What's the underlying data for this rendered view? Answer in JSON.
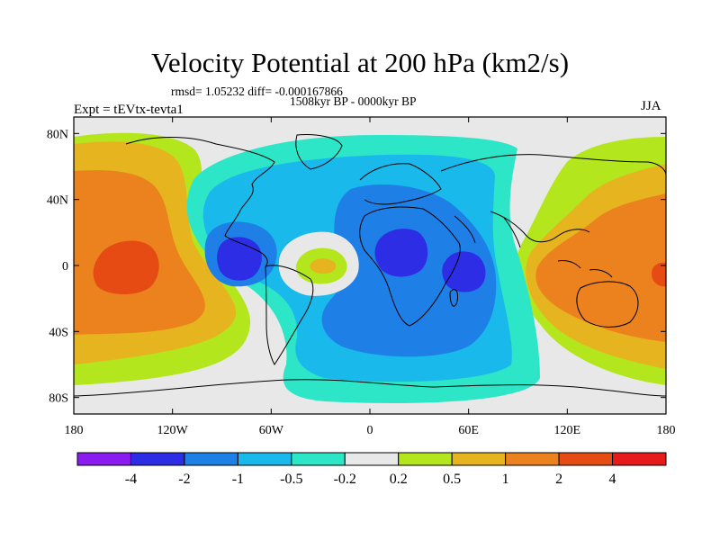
{
  "chart_data": {
    "type": "heatmap",
    "title": "Velocity Potential at 200 hPa (km2/s)",
    "stats_text": "rmsd= 1.05232  diff= -0.000167866",
    "period_text": "1508kyr BP - 0000kyr BP",
    "experiment_text": "Expt = tEVtx-tevta1",
    "season_text": "JJA",
    "x_ticks": [
      "180",
      "120W",
      "60W",
      "0",
      "60E",
      "120E",
      "180"
    ],
    "x_tick_values": [
      -180,
      -120,
      -60,
      0,
      60,
      120,
      180
    ],
    "y_ticks": [
      "80N",
      "40N",
      "0",
      "40S",
      "80S"
    ],
    "y_tick_values": [
      80,
      40,
      0,
      -40,
      -80
    ],
    "xlim": [
      -180,
      180
    ],
    "ylim": [
      -90,
      90
    ],
    "colorbar": {
      "levels": [
        "-4",
        "-2",
        "-1",
        "-0.5",
        "-0.2",
        "0.2",
        "0.5",
        "1",
        "2",
        "4"
      ],
      "colors": [
        "#8a1cf0",
        "#2d2de6",
        "#1e7fe6",
        "#19b9eb",
        "#2de6c8",
        "#e8e8e8",
        "#b4e61e",
        "#e6b41e",
        "#eb821e",
        "#e64b14",
        "#e61a1a"
      ]
    },
    "regions": [
      {
        "label": "Pacific positive anomaly",
        "level": "1 to 2",
        "center_lon": -150,
        "center_lat": 0
      },
      {
        "label": "Pacific positive core",
        "level": "2 to 4",
        "center_lon": -148,
        "center_lat": 0
      },
      {
        "label": "Central America negative core",
        "level": "-4 to -2",
        "center_lon": -80,
        "center_lat": 5
      },
      {
        "label": "South America positive anomaly",
        "level": "0.5 to 1",
        "center_lon": -27,
        "center_lat": 0
      },
      {
        "label": "Africa negative core",
        "level": "-4 to -2",
        "center_lon": 20,
        "center_lat": 10
      },
      {
        "label": "Indian Ocean negative core",
        "level": "-4 to -2",
        "center_lon": 55,
        "center_lat": 0
      },
      {
        "label": "Maritime continent positive anomaly",
        "level": "1 to 2",
        "center_lon": 140,
        "center_lat": 0
      }
    ]
  }
}
